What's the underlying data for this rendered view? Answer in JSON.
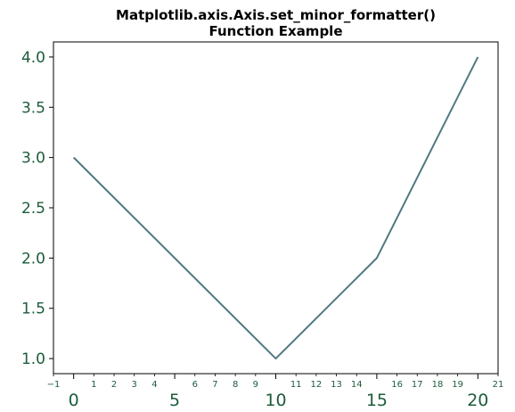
{
  "chart_data": {
    "type": "line",
    "title_lines": [
      "Matplotlib.axis.Axis.set_minor_formatter()",
      "Function Example"
    ],
    "xlabel": "",
    "ylabel": "",
    "x": [
      0,
      10,
      15,
      20
    ],
    "series": [
      {
        "values": [
          3,
          1,
          2,
          4
        ]
      }
    ],
    "xlim": [
      -1,
      21
    ],
    "ylim": [
      0.85,
      4.15
    ],
    "x_major_ticks": [
      0,
      5,
      10,
      15,
      20
    ],
    "x_major_tick_labels": [
      "0",
      "5",
      "10",
      "15",
      "20"
    ],
    "x_minor_ticks": [
      -1,
      1,
      2,
      3,
      4,
      6,
      7,
      8,
      9,
      11,
      12,
      13,
      14,
      16,
      17,
      18,
      19,
      21
    ],
    "x_minor_tick_labels": [
      "−1",
      "1",
      "2",
      "3",
      "4",
      "6",
      "7",
      "8",
      "9",
      "11",
      "12",
      "13",
      "14",
      "16",
      "17",
      "18",
      "19",
      "21"
    ],
    "y_ticks": [
      1.0,
      1.5,
      2.0,
      2.5,
      3.0,
      3.5,
      4.0
    ],
    "y_tick_labels": [
      "1.0",
      "1.5",
      "2.0",
      "2.5",
      "3.0",
      "3.5",
      "4.0"
    ],
    "grid": false,
    "legend": "none",
    "colors": {
      "line": "#4f7a80",
      "tick_label": "#1d5c3a",
      "axes": "#000000"
    }
  }
}
